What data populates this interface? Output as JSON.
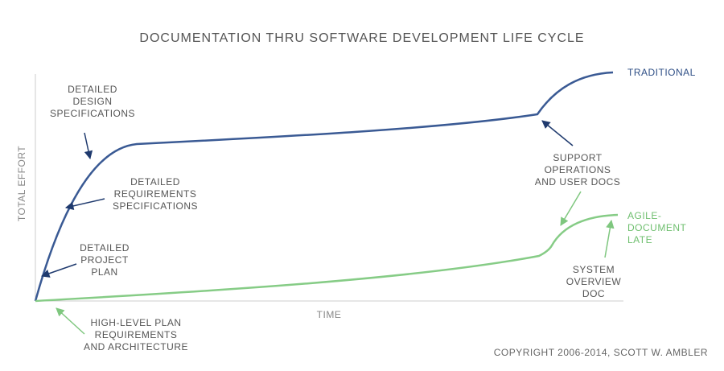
{
  "header": {
    "title": "DOCUMENTATION THRU SOFTWARE DEVELOPMENT LIFE CYCLE"
  },
  "axes": {
    "y_label": "TOTAL EFFORT",
    "x_label": "TIME"
  },
  "curves": [
    {
      "label": [
        "TRADITIONAL"
      ]
    },
    {
      "label": [
        "AGILE-",
        "DOCUMENT",
        "LATE"
      ]
    }
  ],
  "annotations": [
    {
      "lines": [
        "DETAILED",
        "DESIGN",
        "SPECIFICATIONS"
      ]
    },
    {
      "lines": [
        "DETAILED",
        "REQUIREMENTS",
        "SPECIFICATIONS"
      ]
    },
    {
      "lines": [
        "DETAILED",
        "PROJECT",
        "PLAN"
      ]
    },
    {
      "lines": [
        "SUPPORT",
        "OPERATIONS",
        "AND USER DOCS"
      ]
    },
    {
      "lines": [
        "SYSTEM",
        "OVERVIEW",
        "DOC"
      ]
    },
    {
      "lines": [
        "HIGH-LEVEL PLAN",
        "REQUIREMENTS",
        "AND ARCHITECTURE"
      ]
    }
  ],
  "footer": {
    "copyright": "COPYRIGHT 2006-2014, SCOTT W. AMBLER"
  }
}
